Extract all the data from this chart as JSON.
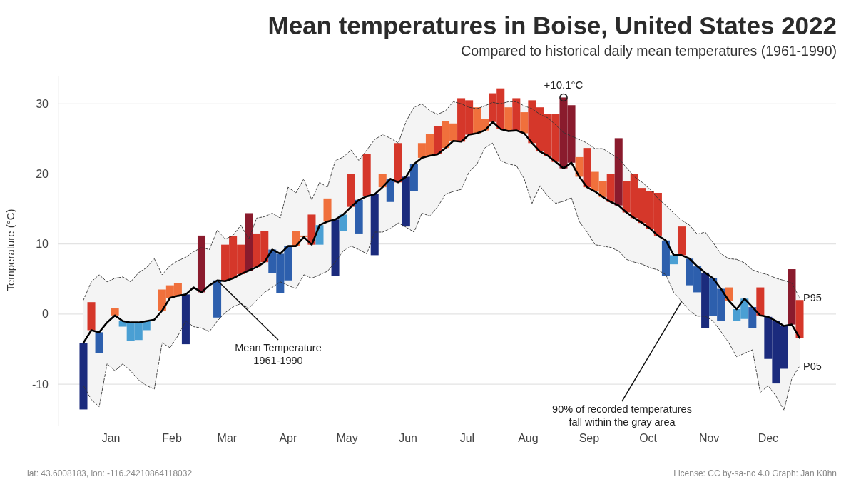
{
  "chart_data": {
    "type": "bar",
    "title": "Mean temperatures in Boise, United States 2022",
    "subtitle": "Compared to historical daily mean temperatures (1961-1990)",
    "ylabel": "Temperature (°C)",
    "x": [
      "2022-01-01",
      "2022-01-05",
      "2022-01-09",
      "2022-01-13",
      "2022-01-17",
      "2022-01-21",
      "2022-01-25",
      "2022-01-29",
      "2022-02-02",
      "2022-02-06",
      "2022-02-10",
      "2022-02-14",
      "2022-02-18",
      "2022-02-22",
      "2022-02-26",
      "2022-03-02",
      "2022-03-06",
      "2022-03-10",
      "2022-03-14",
      "2022-03-18",
      "2022-03-22",
      "2022-03-26",
      "2022-03-30",
      "2022-04-03",
      "2022-04-07",
      "2022-04-11",
      "2022-04-15",
      "2022-04-19",
      "2022-04-23",
      "2022-04-27",
      "2022-05-01",
      "2022-05-05",
      "2022-05-09",
      "2022-05-13",
      "2022-05-17",
      "2022-05-21",
      "2022-05-25",
      "2022-05-29",
      "2022-06-02",
      "2022-06-06",
      "2022-06-10",
      "2022-06-14",
      "2022-06-18",
      "2022-06-22",
      "2022-06-26",
      "2022-06-30",
      "2022-07-04",
      "2022-07-08",
      "2022-07-12",
      "2022-07-16",
      "2022-07-20",
      "2022-07-24",
      "2022-07-28",
      "2022-08-01",
      "2022-08-05",
      "2022-08-09",
      "2022-08-13",
      "2022-08-17",
      "2022-08-21",
      "2022-08-25",
      "2022-08-29",
      "2022-09-02",
      "2022-09-06",
      "2022-09-10",
      "2022-09-14",
      "2022-09-18",
      "2022-09-22",
      "2022-09-26",
      "2022-09-30",
      "2022-10-04",
      "2022-10-08",
      "2022-10-12",
      "2022-10-16",
      "2022-10-20",
      "2022-10-24",
      "2022-10-28",
      "2022-11-01",
      "2022-11-05",
      "2022-11-09",
      "2022-11-13",
      "2022-11-17",
      "2022-11-21",
      "2022-11-25",
      "2022-11-29",
      "2022-12-03",
      "2022-12-07",
      "2022-12-11",
      "2022-12-15",
      "2022-12-19",
      "2022-12-23",
      "2022-12-27",
      "2022-12-31"
    ],
    "xlim": [
      "2022-01-01",
      "2022-12-31"
    ],
    "xticks": [
      {
        "value": "2022-01-15",
        "label": "Jan"
      },
      {
        "value": "2022-02-15",
        "label": "Feb"
      },
      {
        "value": "2022-03-15",
        "label": "Mar"
      },
      {
        "value": "2022-04-15",
        "label": "Apr"
      },
      {
        "value": "2022-05-15",
        "label": "May"
      },
      {
        "value": "2022-06-15",
        "label": "Jun"
      },
      {
        "value": "2022-07-15",
        "label": "Jul"
      },
      {
        "value": "2022-08-15",
        "label": "Aug"
      },
      {
        "value": "2022-09-15",
        "label": "Sep"
      },
      {
        "value": "2022-10-15",
        "label": "Oct"
      },
      {
        "value": "2022-11-15",
        "label": "Nov"
      },
      {
        "value": "2022-12-15",
        "label": "Dec"
      }
    ],
    "ylim": [
      -16,
      34
    ],
    "yticks": [
      -10,
      0,
      10,
      20,
      30
    ],
    "grid": "y",
    "series": [
      {
        "type": "line",
        "color": "#000000",
        "line_style": "solid",
        "values": [
          -4.1,
          -2.3,
          -2.6,
          -1.2,
          -0.2,
          -1.0,
          -1.2,
          -1.2,
          -1.0,
          -0.8,
          0.5,
          2.3,
          2.6,
          2.8,
          3.8,
          3.1,
          4.1,
          4.8,
          4.7,
          5.1,
          5.7,
          6.2,
          6.7,
          7.4,
          9.2,
          8.6,
          9.7,
          9.7,
          11.0,
          9.9,
          12.7,
          13.2,
          13.5,
          14.2,
          15.3,
          16.3,
          16.8,
          17.1,
          18.1,
          19.3,
          18.8,
          19.6,
          21.4,
          22.3,
          22.6,
          22.8,
          23.7,
          24.7,
          24.6,
          25.6,
          25.8,
          26.2,
          27.4,
          26.4,
          26.1,
          26.2,
          25.8,
          24.4,
          23.2,
          22.6,
          21.7,
          20.8,
          21.6,
          19.6,
          18.1,
          17.5,
          16.7,
          16.0,
          15.5,
          14.5,
          13.7,
          13.0,
          12.2,
          11.2,
          10.5,
          8.4,
          8.4,
          7.9,
          6.8,
          5.9,
          5.1,
          3.6,
          1.9,
          0.7,
          2.2,
          1.0,
          -0.2,
          -0.4,
          -1.0,
          -1.7,
          -1.5,
          -3.4
        ],
        "upper": [
          2.0,
          4.6,
          5.6,
          4.6,
          5.1,
          5.3,
          4.6,
          5.9,
          6.6,
          7.9,
          5.6,
          6.9,
          7.6,
          8.1,
          8.9,
          9.5,
          9.2,
          12.0,
          10.7,
          11.2,
          12.7,
          10.7,
          13.7,
          13.9,
          14.4,
          13.7,
          18.1,
          17.3,
          19.3,
          16.3,
          18.8,
          18.1,
          21.9,
          22.4,
          23.4,
          21.9,
          23.4,
          24.9,
          25.6,
          25.1,
          24.4,
          27.5,
          29.5,
          30.0,
          29.0,
          28.5,
          29.0,
          30.3,
          30.0,
          29.5,
          29.3,
          29.7,
          30.2,
          30.0,
          30.3,
          30.3,
          29.7,
          29.3,
          28.5,
          28.0,
          27.0,
          25.9,
          25.4,
          24.9,
          24.4,
          23.6,
          23.6,
          22.9,
          22.2,
          20.9,
          19.6,
          18.8,
          17.8,
          16.5,
          15.5,
          14.4,
          13.4,
          12.7,
          11.4,
          11.7,
          10.2,
          8.6,
          7.9,
          7.8,
          7.3,
          6.3,
          5.9,
          5.6,
          5.1,
          4.8,
          4.4,
          2.3
        ],
        "lower": [
          -10.2,
          -12.2,
          -13.2,
          -7.1,
          -8.1,
          -7.1,
          -8.1,
          -9.4,
          -10.2,
          -10.7,
          -4.1,
          -4.8,
          -3.1,
          -1.0,
          -1.8,
          -2.0,
          -2.5,
          -1.0,
          0.2,
          1.0,
          1.5,
          0.8,
          2.0,
          3.1,
          3.8,
          4.6,
          4.1,
          3.6,
          5.6,
          5.1,
          5.6,
          6.1,
          7.4,
          9.0,
          9.7,
          9.2,
          8.6,
          11.7,
          11.7,
          12.2,
          13.0,
          12.4,
          11.7,
          14.4,
          14.0,
          15.3,
          17.1,
          17.5,
          17.8,
          20.3,
          21.4,
          23.7,
          24.4,
          21.9,
          21.4,
          21.2,
          19.3,
          15.8,
          18.3,
          16.8,
          15.8,
          16.1,
          16.6,
          13.2,
          11.7,
          9.9,
          9.7,
          9.5,
          9.0,
          7.8,
          7.4,
          7.1,
          6.6,
          6.3,
          5.6,
          3.1,
          1.8,
          0.5,
          -0.3,
          -0.3,
          -1.0,
          -2.5,
          -4.1,
          -6.1,
          -5.6,
          -5.1,
          -11.2,
          -10.2,
          -11.7,
          -13.7,
          -9.2,
          -7.4
        ]
      },
      {
        "name": "P95",
        "type": "line",
        "color": "#333333",
        "line_style": "dashed",
        "values": [
          2.0,
          4.6,
          5.6,
          4.6,
          5.1,
          5.3,
          4.6,
          5.9,
          6.6,
          7.9,
          5.6,
          6.9,
          7.6,
          8.1,
          8.9,
          9.5,
          9.2,
          12.0,
          10.7,
          11.2,
          12.7,
          10.7,
          13.7,
          13.9,
          14.4,
          13.7,
          18.1,
          17.3,
          19.3,
          16.3,
          18.8,
          18.1,
          21.9,
          22.4,
          23.4,
          21.9,
          23.4,
          24.9,
          25.6,
          25.1,
          24.4,
          27.5,
          29.5,
          30.0,
          29.0,
          28.5,
          29.0,
          30.3,
          30.0,
          29.5,
          29.3,
          29.7,
          30.2,
          30.0,
          30.3,
          30.3,
          29.7,
          29.3,
          28.5,
          28.0,
          27.0,
          25.9,
          25.4,
          24.9,
          24.4,
          23.6,
          23.6,
          22.9,
          22.2,
          20.9,
          19.6,
          18.8,
          17.8,
          16.5,
          15.5,
          14.4,
          13.4,
          12.7,
          11.4,
          11.7,
          10.2,
          8.6,
          7.9,
          7.8,
          7.3,
          6.3,
          5.9,
          5.6,
          5.1,
          4.8,
          4.4,
          2.3
        ]
      },
      {
        "name": "P05",
        "type": "line",
        "color": "#333333",
        "line_style": "dashed",
        "values": [
          -10.2,
          -12.2,
          -13.2,
          -7.1,
          -8.1,
          -7.1,
          -8.1,
          -9.4,
          -10.2,
          -10.7,
          -4.1,
          -4.8,
          -3.1,
          -1.0,
          -1.8,
          -2.0,
          -2.5,
          -1.0,
          0.2,
          1.0,
          1.5,
          0.8,
          2.0,
          3.1,
          3.8,
          4.6,
          4.1,
          3.6,
          5.6,
          5.1,
          5.6,
          6.1,
          7.4,
          9.0,
          9.7,
          9.2,
          8.6,
          11.7,
          11.7,
          12.2,
          13.0,
          12.4,
          11.7,
          14.4,
          14.0,
          15.3,
          17.1,
          17.5,
          17.8,
          20.3,
          21.4,
          23.7,
          24.4,
          21.9,
          21.4,
          21.2,
          19.3,
          15.8,
          18.3,
          16.8,
          15.8,
          16.1,
          16.6,
          13.2,
          11.7,
          9.9,
          9.7,
          9.5,
          9.0,
          7.8,
          7.4,
          7.1,
          6.6,
          6.3,
          5.6,
          3.1,
          1.8,
          0.5,
          -0.3,
          -0.3,
          -1.0,
          -2.5,
          -4.1,
          -6.1,
          -5.6,
          -5.1,
          -11.2,
          -10.2,
          -11.7,
          -13.7,
          -9.2,
          -7.4
        ]
      },
      {
        "values": [
          -9.5,
          4.0,
          -3.0,
          null,
          1.0,
          -0.8,
          -2.6,
          -2.5,
          -1.3,
          null,
          3.0,
          1.8,
          1.8,
          -7.1,
          null,
          8.1,
          null,
          -5.3,
          5.2,
          6.0,
          4.2,
          8.2,
          4.8,
          4.5,
          -3.4,
          -5.6,
          -4.9,
          2.2,
          0.2,
          4.3,
          -2.8,
          3.3,
          -8.1,
          -2.3,
          4.7,
          -4.8,
          6.0,
          -8.7,
          1.9,
          -3.3,
          5.6,
          -7.1,
          -3.8,
          2.1,
          3.1,
          4.0,
          3.8,
          2.5,
          6.2,
          4.9,
          3.7,
          1.6,
          4.1,
          5.8,
          3.4,
          4.6,
          3.0,
          6.1,
          6.3,
          5.9,
          6.8,
          10.1,
          8.2,
          2.8,
          5.6,
          2.8,
          2.3,
          4.0,
          9.6,
          4.5,
          6.3,
          5.0,
          5.4,
          6.1,
          -5.1,
          -1.3,
          4.1,
          -3.8,
          -3.7,
          -7.9,
          -5.4,
          -4.6,
          1.9,
          -1.7,
          -2.9,
          -3.0,
          4.0,
          -6.0,
          -8.9,
          -6.1,
          7.9,
          5.4
        ],
        "base": [
          -4.1,
          -2.3,
          -2.6,
          null,
          -0.2,
          -1.0,
          -1.2,
          -1.2,
          -1.0,
          null,
          0.5,
          2.3,
          2.6,
          2.8,
          null,
          3.1,
          null,
          4.8,
          4.7,
          5.1,
          5.7,
          6.2,
          6.7,
          7.4,
          9.2,
          8.6,
          9.7,
          9.7,
          11.0,
          9.9,
          12.7,
          13.2,
          13.5,
          14.2,
          15.3,
          16.3,
          16.8,
          17.1,
          18.1,
          19.3,
          18.8,
          19.6,
          21.4,
          22.3,
          22.6,
          22.8,
          23.7,
          24.7,
          24.6,
          25.6,
          25.8,
          26.2,
          27.4,
          26.4,
          26.1,
          26.2,
          25.8,
          24.4,
          23.2,
          22.6,
          21.7,
          20.8,
          21.6,
          19.6,
          18.1,
          17.5,
          16.7,
          16.0,
          15.5,
          14.5,
          13.7,
          13.0,
          12.2,
          11.2,
          10.5,
          8.4,
          8.4,
          7.9,
          6.8,
          5.9,
          5.1,
          3.6,
          1.9,
          0.7,
          2.2,
          1.0,
          -0.2,
          -0.4,
          -1.0,
          -1.7,
          -1.5,
          -3.4
        ],
        "colors": [
          "#1b2b7d",
          "#d5372a",
          "#2d5fad",
          null,
          "#f0703c",
          "#4a9fd3",
          "#4a9fd3",
          "#4a9fd3",
          "#4a9fd3",
          null,
          "#f0703c",
          "#f0703c",
          "#f0703c",
          "#1b2b7d",
          null,
          "#8a1b2d",
          null,
          "#2d5fad",
          "#d5372a",
          "#d5372a",
          "#d5372a",
          "#8a1b2d",
          "#d5372a",
          "#d5372a",
          "#2d5fad",
          "#2d5fad",
          "#2d5fad",
          "#f0703c",
          "#f0703c",
          "#d5372a",
          "#4a9fd3",
          "#f0703c",
          "#1b2b7d",
          "#4a9fd3",
          "#d5372a",
          "#2d5fad",
          "#d5372a",
          "#1b2b7d",
          "#f0703c",
          "#2d5fad",
          "#d5372a",
          "#1b2b7d",
          "#2d5fad",
          "#f0703c",
          "#f0703c",
          "#d5372a",
          "#f0703c",
          "#f0703c",
          "#d5372a",
          "#d5372a",
          "#f0703c",
          "#f0703c",
          "#d5372a",
          "#d5372a",
          "#f0703c",
          "#d5372a",
          "#f0703c",
          "#d5372a",
          "#d5372a",
          "#d5372a",
          "#d5372a",
          "#8a1b2d",
          "#8a1b2d",
          "#f0703c",
          "#d5372a",
          "#f0703c",
          "#f0703c",
          "#d5372a",
          "#8a1b2d",
          "#d5372a",
          "#d5372a",
          "#d5372a",
          "#d5372a",
          "#d5372a",
          "#2d5fad",
          "#4a9fd3",
          "#d5372a",
          "#2d5fad",
          "#2d5fad",
          "#1b2b7d",
          "#2d5fad",
          "#2d5fad",
          "#f0703c",
          "#4a9fd3",
          "#4a9fd3",
          "#2d5fad",
          "#d5372a",
          "#1b2b7d",
          "#1b2b7d",
          "#1b2b7d",
          "#8a1b2d",
          "#d5372a"
        ]
      }
    ],
    "annotations": [
      {
        "text": "+10.1°C",
        "x": "2022-09-02",
        "y": 30.9
      },
      {
        "text": "Mean Temperature 1961-1990",
        "x": "2022-03-10",
        "y": 4.8
      },
      {
        "text": "90% of recorded temperatures fall within the gray area",
        "x": "2022-11-01",
        "y": 1.8
      },
      "lat: 43.6008183, lon: -116.24210864118032",
      "License: CC by-sa-nc 4.0  Graph: Jan Kühn"
    ]
  }
}
